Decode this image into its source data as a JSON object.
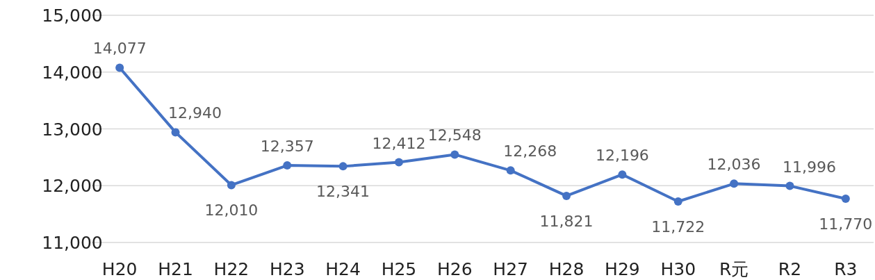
{
  "chart_data": {
    "type": "line",
    "categories": [
      "H20",
      "H21",
      "H22",
      "H23",
      "H24",
      "H25",
      "H26",
      "H27",
      "H28",
      "H29",
      "H30",
      "R元",
      "R2",
      "R3"
    ],
    "values": [
      14077,
      12940,
      12010,
      12357,
      12341,
      12412,
      12548,
      12268,
      11821,
      12196,
      11722,
      12036,
      11996,
      11770
    ],
    "value_labels": [
      "14,077",
      "12,940",
      "12,010",
      "12,357",
      "12,341",
      "12,412",
      "12,548",
      "12,268",
      "11,821",
      "12,196",
      "11,722",
      "12,036",
      "11,996",
      "11,770"
    ],
    "color": "#4472c4",
    "marker": "circle",
    "line_style": "solid",
    "grid": "y",
    "ylim": [
      11000,
      15000
    ],
    "yticks": [
      {
        "value": 11000,
        "label": "11,000"
      },
      {
        "value": 12000,
        "label": "12,000"
      },
      {
        "value": 13000,
        "label": "13,000"
      },
      {
        "value": 14000,
        "label": "14,000"
      },
      {
        "value": 15000,
        "label": "15,000"
      }
    ]
  }
}
